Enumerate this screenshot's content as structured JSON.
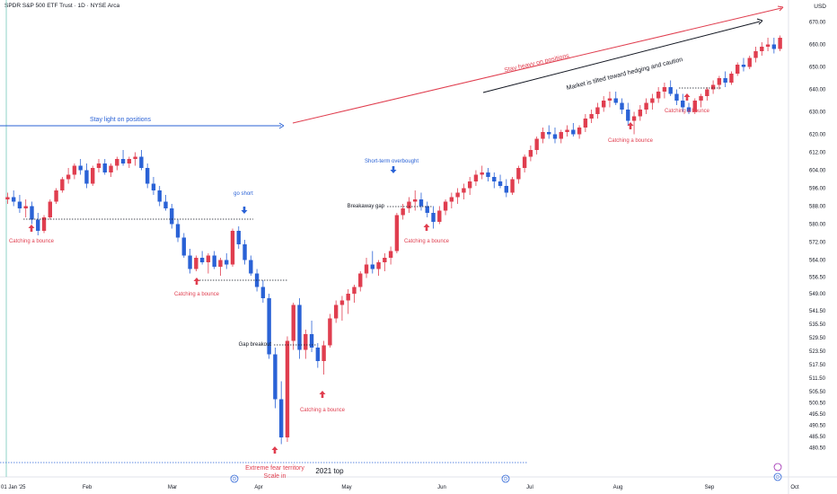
{
  "header": {
    "title": "SPDR S&P 500 ETF Trust · 1D · NYSE Arca",
    "currency": "USD"
  },
  "colors": {
    "up": "#e03e4f",
    "down": "#2a62d6",
    "blue": "#2a62d6",
    "red": "#e03e4f",
    "black": "#131722"
  },
  "chart_data": {
    "type": "candlestick",
    "ylim": [
      475,
      675
    ],
    "yticks": [
      "480.50",
      "485.50",
      "490.50",
      "495.50",
      "500.50",
      "505.50",
      "511.50",
      "517.50",
      "523.50",
      "529.50",
      "535.50",
      "541.50",
      "549.00",
      "556.50",
      "564.00",
      "572.00",
      "580.00",
      "588.00",
      "596.00",
      "604.00",
      "612.00",
      "620.00",
      "630.00",
      "640.00",
      "650.00",
      "660.00",
      "670.00"
    ],
    "xticks": [
      "01 Jan '25",
      "Feb",
      "Mar",
      "Apr",
      "May",
      "Jun",
      "Jul",
      "Aug",
      "Sep",
      "Oct"
    ],
    "candles": [
      [
        591,
        594,
        589,
        592
      ],
      [
        592,
        595,
        588,
        590
      ],
      [
        590,
        593,
        585,
        587
      ],
      [
        587,
        591,
        583,
        588
      ],
      [
        588,
        590,
        580,
        582
      ],
      [
        582,
        585,
        575,
        577
      ],
      [
        577,
        584,
        576,
        583
      ],
      [
        583,
        591,
        582,
        590
      ],
      [
        590,
        596,
        589,
        595
      ],
      [
        595,
        601,
        594,
        600
      ],
      [
        600,
        605,
        598,
        602
      ],
      [
        602,
        607,
        600,
        606
      ],
      [
        606,
        609,
        602,
        604
      ],
      [
        604,
        607,
        596,
        598
      ],
      [
        598,
        606,
        597,
        605
      ],
      [
        605,
        609,
        603,
        607
      ],
      [
        607,
        609,
        602,
        603
      ],
      [
        603,
        607,
        601,
        606
      ],
      [
        606,
        610,
        604,
        609
      ],
      [
        609,
        613,
        606,
        607
      ],
      [
        607,
        610,
        605,
        609
      ],
      [
        609,
        612,
        606,
        610
      ],
      [
        610,
        613,
        604,
        605
      ],
      [
        605,
        607,
        596,
        598
      ],
      [
        598,
        601,
        593,
        595
      ],
      [
        595,
        597,
        588,
        590
      ],
      [
        590,
        593,
        586,
        587
      ],
      [
        587,
        589,
        578,
        580
      ],
      [
        580,
        582,
        572,
        574
      ],
      [
        574,
        576,
        565,
        566
      ],
      [
        566,
        569,
        558,
        560
      ],
      [
        560,
        566,
        559,
        565
      ],
      [
        565,
        568,
        562,
        563
      ],
      [
        563,
        567,
        558,
        566
      ],
      [
        566,
        568,
        560,
        561
      ],
      [
        561,
        565,
        557,
        564
      ],
      [
        564,
        567,
        560,
        562
      ],
      [
        562,
        578,
        561,
        577
      ],
      [
        577,
        579,
        569,
        571
      ],
      [
        571,
        573,
        562,
        564
      ],
      [
        564,
        566,
        557,
        558
      ],
      [
        558,
        560,
        550,
        552
      ],
      [
        552,
        555,
        545,
        547
      ],
      [
        547,
        549,
        520,
        522
      ],
      [
        522,
        525,
        498,
        502
      ],
      [
        502,
        510,
        482,
        485
      ],
      [
        485,
        530,
        483,
        528
      ],
      [
        528,
        545,
        524,
        544
      ],
      [
        544,
        547,
        520,
        524
      ],
      [
        524,
        533,
        520,
        531
      ],
      [
        531,
        537,
        523,
        525
      ],
      [
        525,
        527,
        516,
        519
      ],
      [
        519,
        528,
        513,
        526
      ],
      [
        526,
        540,
        525,
        538
      ],
      [
        538,
        546,
        536,
        544
      ],
      [
        544,
        548,
        537,
        546
      ],
      [
        546,
        551,
        540,
        549
      ],
      [
        549,
        553,
        545,
        552
      ],
      [
        552,
        559,
        550,
        558
      ],
      [
        558,
        565,
        556,
        562
      ],
      [
        562,
        568,
        558,
        560
      ],
      [
        560,
        564,
        557,
        563
      ],
      [
        563,
        567,
        559,
        565
      ],
      [
        565,
        570,
        562,
        568
      ],
      [
        568,
        585,
        567,
        584
      ],
      [
        584,
        589,
        582,
        587
      ],
      [
        587,
        592,
        585,
        590
      ],
      [
        590,
        595,
        586,
        591
      ],
      [
        591,
        594,
        586,
        588
      ],
      [
        588,
        590,
        583,
        585
      ],
      [
        585,
        588,
        578,
        581
      ],
      [
        581,
        588,
        580,
        586
      ],
      [
        586,
        591,
        584,
        590
      ],
      [
        590,
        594,
        587,
        592
      ],
      [
        592,
        596,
        589,
        594
      ],
      [
        594,
        598,
        591,
        596
      ],
      [
        596,
        601,
        593,
        599
      ],
      [
        599,
        604,
        597,
        602
      ],
      [
        602,
        606,
        600,
        603
      ],
      [
        603,
        605,
        599,
        601
      ],
      [
        601,
        603,
        596,
        599
      ],
      [
        599,
        602,
        596,
        597
      ],
      [
        597,
        600,
        592,
        594
      ],
      [
        594,
        601,
        593,
        600
      ],
      [
        600,
        606,
        598,
        605
      ],
      [
        605,
        611,
        603,
        610
      ],
      [
        610,
        615,
        608,
        613
      ],
      [
        613,
        619,
        611,
        618
      ],
      [
        618,
        623,
        616,
        621
      ],
      [
        621,
        624,
        618,
        620
      ],
      [
        620,
        623,
        616,
        618
      ],
      [
        618,
        622,
        616,
        621
      ],
      [
        621,
        624,
        619,
        622
      ],
      [
        622,
        625,
        619,
        620
      ],
      [
        620,
        624,
        618,
        623
      ],
      [
        623,
        629,
        621,
        627
      ],
      [
        627,
        631,
        625,
        629
      ],
      [
        629,
        634,
        627,
        632
      ],
      [
        632,
        637,
        630,
        635
      ],
      [
        635,
        639,
        632,
        636
      ],
      [
        636,
        639,
        633,
        634
      ],
      [
        634,
        636,
        629,
        631
      ],
      [
        631,
        634,
        624,
        626
      ],
      [
        626,
        630,
        620,
        628
      ],
      [
        628,
        633,
        626,
        631
      ],
      [
        631,
        636,
        629,
        634
      ],
      [
        634,
        638,
        631,
        636
      ],
      [
        636,
        641,
        634,
        639
      ],
      [
        639,
        643,
        636,
        641
      ],
      [
        641,
        644,
        637,
        638
      ],
      [
        638,
        640,
        633,
        635
      ],
      [
        635,
        638,
        630,
        632
      ],
      [
        632,
        634,
        629,
        630
      ],
      [
        630,
        636,
        629,
        635
      ],
      [
        635,
        638,
        632,
        637
      ],
      [
        637,
        641,
        635,
        640
      ],
      [
        640,
        644,
        638,
        642
      ],
      [
        642,
        646,
        640,
        645
      ],
      [
        645,
        648,
        641,
        643
      ],
      [
        643,
        648,
        642,
        647
      ],
      [
        647,
        652,
        646,
        651
      ],
      [
        651,
        654,
        648,
        650
      ],
      [
        650,
        655,
        649,
        654
      ],
      [
        654,
        659,
        652,
        657
      ],
      [
        657,
        661,
        655,
        659
      ],
      [
        659,
        663,
        657,
        660
      ],
      [
        660,
        663,
        656,
        658
      ],
      [
        658,
        664,
        657,
        663
      ]
    ],
    "annotations": {
      "stay_light": "Stay light on positions",
      "stay_heavy": "Stay heavy on positions",
      "tilted": "Market is tilted toward hedging and caution",
      "go_short": "go short",
      "short_term_overbought": "Short-term overbought",
      "breakaway_gap": "Breakaway gap",
      "gap_breakout": "Gap breakout",
      "catching_bounce": "Catching a bounce",
      "extreme_fear_1": "Extreme fear territory",
      "extreme_fear_2": "Scale in",
      "top_2021": "2021 top"
    }
  }
}
